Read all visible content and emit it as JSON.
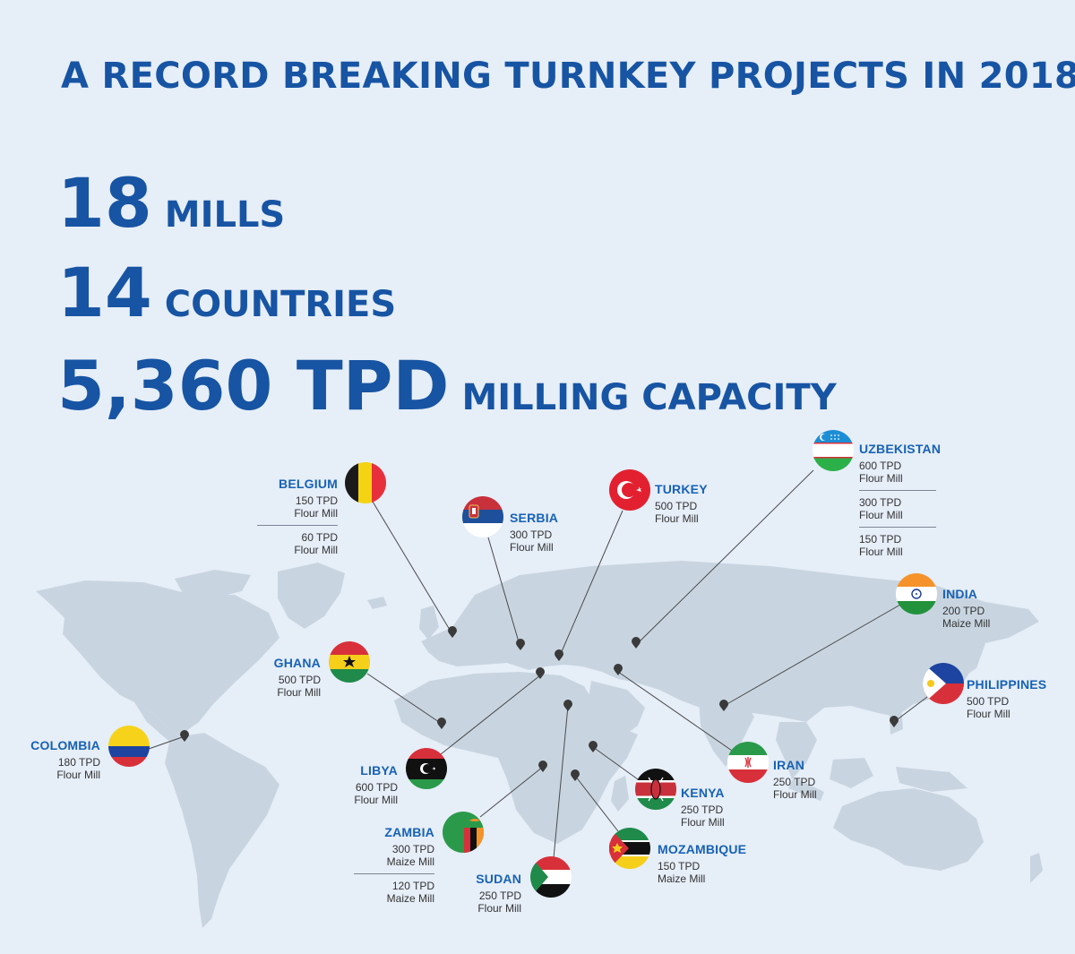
{
  "title": "A RECORD BREAKING TURNKEY PROJECTS IN 2018",
  "stats": [
    {
      "value": "18",
      "label": "MILLS"
    },
    {
      "value": "14",
      "label": "COUNTRIES"
    },
    {
      "value": "5,360 TPD",
      "label": "MILLING CAPACITY"
    }
  ],
  "colors": {
    "primary": "#1754a3",
    "country_label": "#1762b5",
    "map_land": "#c8d5e1",
    "background": "#e6eef8"
  },
  "countries": {
    "belgium": {
      "name": "BELGIUM",
      "flag": "belgium-flag",
      "projects": [
        {
          "capacity": "150 TPD",
          "type": "Flour Mill"
        },
        {
          "capacity": "60 TPD",
          "type": "Flour Mill"
        }
      ]
    },
    "serbia": {
      "name": "SERBIA",
      "flag": "serbia-flag",
      "projects": [
        {
          "capacity": "300 TPD",
          "type": "Flour Mill"
        }
      ]
    },
    "turkey": {
      "name": "TURKEY",
      "flag": "turkey-flag",
      "projects": [
        {
          "capacity": "500 TPD",
          "type": "Flour Mill"
        }
      ]
    },
    "uzbekistan": {
      "name": "UZBEKISTAN",
      "flag": "uzbekistan-flag",
      "projects": [
        {
          "capacity": "600 TPD",
          "type": "Flour Mill"
        },
        {
          "capacity": "300 TPD",
          "type": "Flour Mill"
        },
        {
          "capacity": "150 TPD",
          "type": "Flour Mill"
        }
      ]
    },
    "india": {
      "name": "INDIA",
      "flag": "india-flag",
      "projects": [
        {
          "capacity": "200 TPD",
          "type": "Maize Mill"
        }
      ]
    },
    "ghana": {
      "name": "GHANA",
      "flag": "ghana-flag",
      "projects": [
        {
          "capacity": "500 TPD",
          "type": "Flour Mill"
        }
      ]
    },
    "philippines": {
      "name": "PHILIPPINES",
      "flag": "philippines-flag",
      "projects": [
        {
          "capacity": "500 TPD",
          "type": "Flour Mill"
        }
      ]
    },
    "colombia": {
      "name": "COLOMBIA",
      "flag": "colombia-flag",
      "projects": [
        {
          "capacity": "180 TPD",
          "type": "Flour Mill"
        }
      ]
    },
    "libya": {
      "name": "LIBYA",
      "flag": "libya-flag",
      "projects": [
        {
          "capacity": "600 TPD",
          "type": "Flour Mill"
        }
      ]
    },
    "iran": {
      "name": "IRAN",
      "flag": "iran-flag",
      "projects": [
        {
          "capacity": "250 TPD",
          "type": "Flour Mill"
        }
      ]
    },
    "kenya": {
      "name": "KENYA",
      "flag": "kenya-flag",
      "projects": [
        {
          "capacity": "250 TPD",
          "type": "Flour Mill"
        }
      ]
    },
    "zambia": {
      "name": "ZAMBIA",
      "flag": "zambia-flag",
      "projects": [
        {
          "capacity": "300 TPD",
          "type": "Maize Mill"
        },
        {
          "capacity": "120 TPD",
          "type": "Maize Mill"
        }
      ]
    },
    "mozambique": {
      "name": "MOZAMBIQUE",
      "flag": "mozambique-flag",
      "projects": [
        {
          "capacity": "150 TPD",
          "type": "Maize Mill"
        }
      ]
    },
    "sudan": {
      "name": "SUDAN",
      "flag": "sudan-flag",
      "projects": [
        {
          "capacity": "250 TPD",
          "type": "Flour Mill"
        }
      ]
    }
  }
}
